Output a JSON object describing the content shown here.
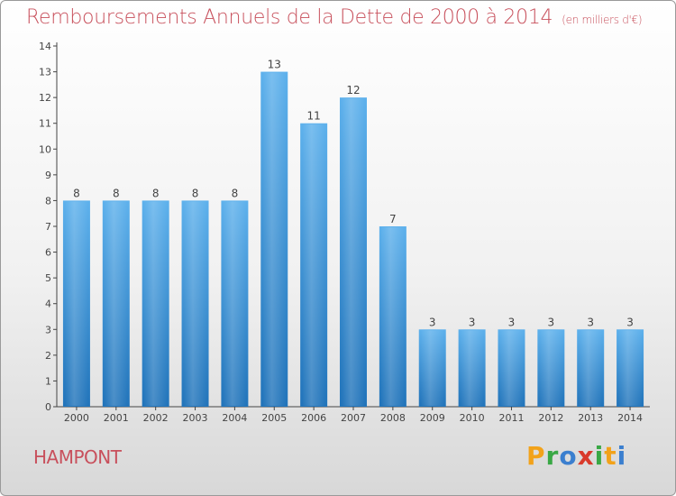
{
  "header": {
    "title": "Remboursements Annuels de la Dette de 2000 à 2014",
    "unit": "(en milliers d'€)"
  },
  "commune": "HAMPONT",
  "logo": {
    "text": "Proxiti",
    "letters": [
      "P",
      "r",
      "o",
      "x",
      "i",
      "t",
      "i"
    ],
    "colors": [
      "#f2a21a",
      "#39a845",
      "#3b7fcf",
      "#d93a2b",
      "#39a845",
      "#f2a21a",
      "#3b7fcf"
    ]
  },
  "colors": {
    "bar_top": "#5eb1ec",
    "bar_bottom": "#2274ba",
    "title": "#c8505c"
  },
  "chart_data": {
    "type": "bar",
    "title": "Remboursements Annuels de la Dette de 2000 à 2014",
    "xlabel": "",
    "ylabel": "",
    "categories": [
      "2000",
      "2001",
      "2002",
      "2003",
      "2004",
      "2005",
      "2006",
      "2007",
      "2008",
      "2009",
      "2010",
      "2011",
      "2012",
      "2013",
      "2014"
    ],
    "values": [
      8,
      8,
      8,
      8,
      8,
      13,
      11,
      12,
      7,
      3,
      3,
      3,
      3,
      3,
      3
    ],
    "ylim": [
      0,
      14
    ],
    "yticks": [
      "0",
      "1",
      "2",
      "3",
      "4",
      "5",
      "6",
      "7",
      "8",
      "9",
      "10",
      "11",
      "12",
      "13",
      "14"
    ],
    "grid": false,
    "legend": "none"
  }
}
